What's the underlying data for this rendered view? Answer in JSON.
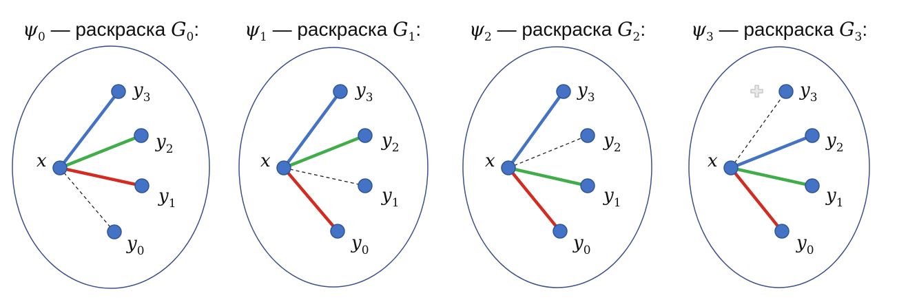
{
  "colors": {
    "blue": "#4472c4",
    "green": "#3fae49",
    "red": "#d42a20",
    "oval": "#3b4f8a"
  },
  "panels": [
    {
      "title": {
        "psi": "ψ",
        "psi_sub": "0",
        "dash": " — ",
        "word": "раскраска ",
        "g": "G",
        "g_sub": "0",
        "colon": ":"
      },
      "center": {
        "name": "x"
      },
      "leaves": [
        {
          "name": "y",
          "sub": "3",
          "edge": "blue"
        },
        {
          "name": "y",
          "sub": "2",
          "edge": "green"
        },
        {
          "name": "y",
          "sub": "1",
          "edge": "red"
        },
        {
          "name": "y",
          "sub": "0",
          "edge": "dashed"
        }
      ]
    },
    {
      "title": {
        "psi": "ψ",
        "psi_sub": "1",
        "dash": " — ",
        "word": "раскраска ",
        "g": "G",
        "g_sub": "1",
        "colon": ":"
      },
      "center": {
        "name": "x"
      },
      "leaves": [
        {
          "name": "y",
          "sub": "3",
          "edge": "blue"
        },
        {
          "name": "y",
          "sub": "2",
          "edge": "green"
        },
        {
          "name": "y",
          "sub": "1",
          "edge": "dashed"
        },
        {
          "name": "y",
          "sub": "0",
          "edge": "red"
        }
      ]
    },
    {
      "title": {
        "psi": "ψ",
        "psi_sub": "2",
        "dash": " — ",
        "word": "раскраска ",
        "g": "G",
        "g_sub": "2",
        "colon": ":"
      },
      "center": {
        "name": "x"
      },
      "leaves": [
        {
          "name": "y",
          "sub": "3",
          "edge": "blue"
        },
        {
          "name": "y",
          "sub": "2",
          "edge": "dashed"
        },
        {
          "name": "y",
          "sub": "1",
          "edge": "green"
        },
        {
          "name": "y",
          "sub": "0",
          "edge": "red"
        }
      ]
    },
    {
      "title": {
        "psi": "ψ",
        "psi_sub": "3",
        "dash": " — ",
        "word": "раскраска ",
        "g": "G",
        "g_sub": "3",
        "colon": ":"
      },
      "center": {
        "name": "x"
      },
      "leaves": [
        {
          "name": "y",
          "sub": "3",
          "edge": "dashed"
        },
        {
          "name": "y",
          "sub": "2",
          "edge": "blue"
        },
        {
          "name": "y",
          "sub": "1",
          "edge": "green"
        },
        {
          "name": "y",
          "sub": "0",
          "edge": "red"
        }
      ]
    }
  ]
}
